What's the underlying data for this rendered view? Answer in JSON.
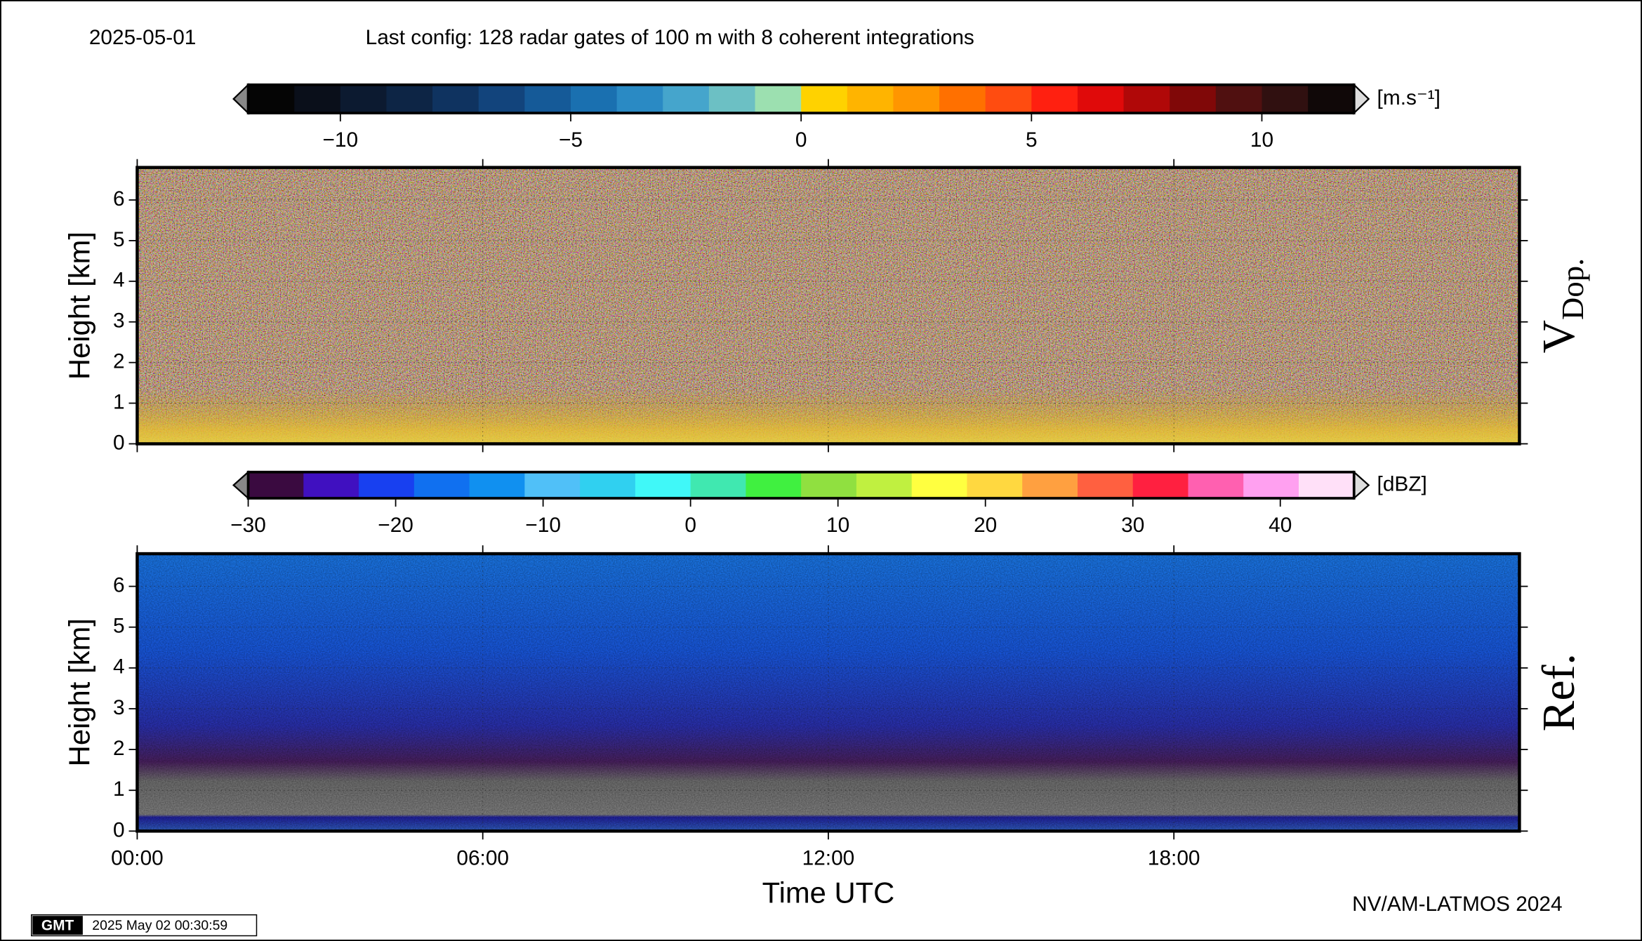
{
  "header": {
    "date": "2025-05-01",
    "config": "Last config: 128 radar gates of 100 m with 8 coherent integrations"
  },
  "chart_data": [
    {
      "type": "colorbar",
      "unit_label": "[m.s⁻¹]",
      "xlim": [
        -12,
        12
      ],
      "xticks": [
        {
          "value": -10,
          "label": "−10"
        },
        {
          "value": -5,
          "label": "−5"
        },
        0,
        5,
        10
      ],
      "colors": [
        "#050505",
        "#0a0f1a",
        "#0c1a30",
        "#0d2545",
        "#0f3360",
        "#12447c",
        "#155a98",
        "#1a70b0",
        "#2a8ac4",
        "#45a5cc",
        "#6cc0c4",
        "#9ce0b0",
        "#ffd200",
        "#ffb400",
        "#ff9600",
        "#ff7000",
        "#ff4c10",
        "#ff2010",
        "#e00a0a",
        "#b00808",
        "#800808",
        "#501010",
        "#301010",
        "#100808"
      ]
    },
    {
      "type": "heatmap",
      "ylabel": "Height [km]",
      "panel_label": "V",
      "panel_label_sub": "Dop.",
      "xlim": [
        0,
        24
      ],
      "xticks": [
        0,
        6,
        12,
        18
      ],
      "ylim": [
        0,
        6.8
      ],
      "yticks": [
        0,
        1,
        2,
        3,
        4,
        5,
        6
      ],
      "grid": true
    },
    {
      "type": "colorbar",
      "unit_label": "[dBZ]",
      "xlim": [
        -30,
        45
      ],
      "xticks": [
        {
          "value": -30,
          "label": "−30"
        },
        {
          "value": -20,
          "label": "−20"
        },
        {
          "value": -10,
          "label": "−10"
        },
        0,
        10,
        20,
        30,
        40
      ],
      "colors": [
        "#3a0a40",
        "#4010c0",
        "#1840f0",
        "#1070f0",
        "#1090f0",
        "#50c0f8",
        "#30d0f0",
        "#40f8f8",
        "#40e8b0",
        "#40f040",
        "#90e040",
        "#c0f040",
        "#ffff40",
        "#ffd840",
        "#ffa040",
        "#ff6040",
        "#ff2040",
        "#ff60b0",
        "#ffa0f0",
        "#ffe0f8"
      ]
    },
    {
      "type": "heatmap",
      "ylabel": "Height [km]",
      "panel_label": "Ref.",
      "xlabel": "Time UTC",
      "xlim": [
        0,
        24
      ],
      "xticks": [
        {
          "value": 0,
          "label": "00:00"
        },
        {
          "value": 6,
          "label": "06:00"
        },
        {
          "value": 12,
          "label": "12:00"
        },
        {
          "value": 18,
          "label": "18:00"
        }
      ],
      "ylim": [
        0,
        6.8
      ],
      "yticks": [
        0,
        1,
        2,
        3,
        4,
        5,
        6
      ],
      "grid": true
    }
  ],
  "footer": {
    "credit": "NV/AM-LATMOS 2024",
    "logo": "GMT",
    "timestamp": "2025 May 02 00:30:59"
  }
}
